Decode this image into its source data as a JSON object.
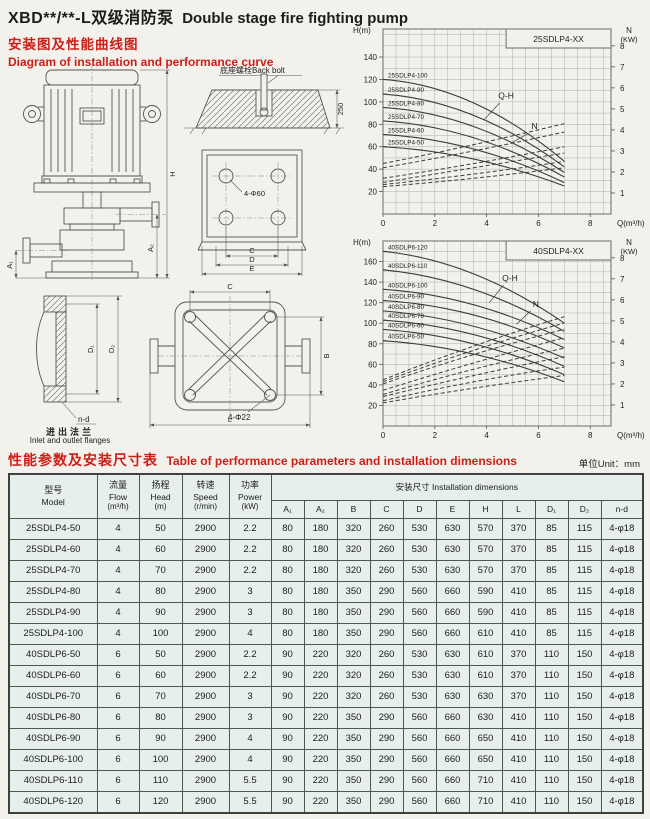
{
  "page": {
    "title_cn": "XBD**/**-L双级消防泵",
    "title_en": "Double stage fire fighting pump"
  },
  "section1": {
    "heading_cn": "安装图及性能曲线图",
    "heading_en": "Diagram of installation and performance curve"
  },
  "section2": {
    "heading_cn": "性能参数及安装尺寸表",
    "heading_en": "Table of performance parameters and installation dimensions",
    "unit_note": "单位Unit：mm"
  },
  "diagrams": {
    "pump": {
      "dim_h": "H",
      "dim_a2": "A₂",
      "dim_a1": "A₁"
    },
    "foundation": {
      "label": "底座螺栓Back bolt",
      "dim": "250"
    },
    "base_plate": {
      "holes": "4-Φ60",
      "dim_c": "C",
      "dim_d": "D",
      "dim_e": "E"
    },
    "flange": {
      "dim_d1": "D₁",
      "dim_d2": "D₂",
      "holes": "n-d",
      "caption_cn": "进出法兰",
      "caption_en": "Inlet and outlet flanges"
    },
    "base_top": {
      "holes": "4-Φ22",
      "dim_c": "C",
      "dim_b": "B",
      "dim_l": "L"
    }
  },
  "chart_data": [
    {
      "type": "line",
      "title": "25SDLP4-XX",
      "xlabel": "Q(m³/h)",
      "ylabel_left": "H(m)",
      "ylabel_right": "N (KW)",
      "xlim": [
        0,
        8.8
      ],
      "ylim_left": [
        0,
        165
      ],
      "ylim_right": [
        0,
        8.8
      ],
      "x_ticks": [
        0,
        2,
        4,
        6,
        8
      ],
      "h_ticks": [
        20,
        40,
        60,
        80,
        100,
        120,
        140
      ],
      "n_ticks": [
        1,
        2,
        3,
        4,
        5,
        6,
        7,
        8
      ],
      "grid": true,
      "grid_step_q": 0.5,
      "grid_step_h": 10,
      "qh_series": [
        {
          "name": "25SDLP4-100",
          "points": [
            [
              0,
              120
            ],
            [
              3.5,
              99
            ],
            [
              7,
              47
            ]
          ]
        },
        {
          "name": "25SDLP4-90",
          "points": [
            [
              0,
              107
            ],
            [
              3.5,
              88
            ],
            [
              7,
              42
            ]
          ]
        },
        {
          "name": "25SDLP4-80",
          "points": [
            [
              0,
              95
            ],
            [
              3.5,
              78
            ],
            [
              7,
              37
            ]
          ]
        },
        {
          "name": "25SDLP4-70",
          "points": [
            [
              0,
              83
            ],
            [
              3.5,
              68
            ],
            [
              7,
              33
            ]
          ]
        },
        {
          "name": "25SDLP4-60",
          "points": [
            [
              0,
              71
            ],
            [
              3.5,
              58
            ],
            [
              7,
              28
            ]
          ]
        },
        {
          "name": "25SDLP4-50",
          "points": [
            [
              0,
              60
            ],
            [
              3.5,
              49
            ],
            [
              7,
              25
            ]
          ]
        }
      ],
      "n_series": [
        {
          "name": "25SDLP4-100 N",
          "points": [
            [
              0,
              2.4
            ],
            [
              3.5,
              3.3
            ],
            [
              7,
              4.3
            ]
          ]
        },
        {
          "name": "25SDLP4-90 N",
          "points": [
            [
              0,
              2.2
            ],
            [
              3.5,
              3.0
            ],
            [
              7,
              3.9
            ]
          ]
        },
        {
          "name": "25SDLP4-80 N",
          "points": [
            [
              0,
              1.7
            ],
            [
              3.5,
              2.4
            ],
            [
              7,
              3.2
            ]
          ]
        },
        {
          "name": "25SDLP4-70 N",
          "points": [
            [
              0,
              1.5
            ],
            [
              3.5,
              2.2
            ],
            [
              7,
              2.9
            ]
          ]
        },
        {
          "name": "25SDLP4-60 N",
          "points": [
            [
              0,
              1.4
            ],
            [
              3.5,
              1.9
            ],
            [
              7,
              2.5
            ]
          ]
        },
        {
          "name": "25SDLP4-50 N",
          "points": [
            [
              0,
              1.3
            ],
            [
              3.5,
              1.7
            ],
            [
              7,
              2.2
            ]
          ]
        }
      ],
      "annotations": [
        {
          "label": "Q-H",
          "q": 4.75,
          "h": 103,
          "leader": [
            3.9,
            84,
            4.5,
            99
          ]
        },
        {
          "label": "N",
          "q": 5.85,
          "h": 76,
          "leader": [
            5.0,
            64,
            5.62,
            72
          ]
        }
      ]
    },
    {
      "type": "line",
      "title": "40SDLP4-XX",
      "xlabel": "Q(m³/h)",
      "ylabel_left": "H(m)",
      "ylabel_right": "N (KW)",
      "xlim": [
        0,
        8.8
      ],
      "ylim_left": [
        0,
        180
      ],
      "ylim_right": [
        0,
        8.8
      ],
      "x_ticks": [
        0,
        2,
        4,
        6,
        8
      ],
      "h_ticks": [
        20,
        40,
        60,
        80,
        100,
        120,
        140,
        160
      ],
      "n_ticks": [
        1,
        2,
        3,
        4,
        5,
        6,
        7,
        8
      ],
      "grid": true,
      "grid_step_q": 0.5,
      "grid_step_h": 10,
      "qh_series": [
        {
          "name": "40SDLP6-120",
          "points": [
            [
              0,
              170
            ],
            [
              3.5,
              148
            ],
            [
              7,
              100
            ]
          ]
        },
        {
          "name": "40SDLP6-110",
          "points": [
            [
              0,
              152
            ],
            [
              3.5,
              133
            ],
            [
              7,
              92
            ]
          ]
        },
        {
          "name": "40SDLP6-100",
          "points": [
            [
              0,
              133
            ],
            [
              3.5,
              118
            ],
            [
              7,
              84
            ]
          ]
        },
        {
          "name": "40SDLP6-90",
          "points": [
            [
              0,
              122
            ],
            [
              3.5,
              108
            ],
            [
              7,
              76
            ]
          ]
        },
        {
          "name": "40SDLP6-80",
          "points": [
            [
              0,
              112
            ],
            [
              3.5,
              97
            ],
            [
              7,
              66
            ]
          ]
        },
        {
          "name": "40SDLP6-70",
          "points": [
            [
              0,
              103
            ],
            [
              3.5,
              89
            ],
            [
              7,
              58
            ]
          ]
        },
        {
          "name": "40SDLP6-60",
          "points": [
            [
              0,
              94
            ],
            [
              3.5,
              80
            ],
            [
              7,
              50
            ]
          ]
        },
        {
          "name": "40SDLP6-50",
          "points": [
            [
              0,
              83
            ],
            [
              3.5,
              70
            ],
            [
              7,
              43
            ]
          ]
        }
      ],
      "n_series": [
        {
          "name": "40SDLP6-120 N",
          "points": [
            [
              0,
              2.2
            ],
            [
              3.5,
              3.8
            ],
            [
              7,
              5.2
            ]
          ]
        },
        {
          "name": "40SDLP6-110 N",
          "points": [
            [
              0,
              2.1
            ],
            [
              3.5,
              3.6
            ],
            [
              7,
              4.9
            ]
          ]
        },
        {
          "name": "40SDLP6-100 N",
          "points": [
            [
              0,
              2.0
            ],
            [
              3.5,
              3.4
            ],
            [
              7,
              4.6
            ]
          ]
        },
        {
          "name": "40SDLP6-90 N",
          "points": [
            [
              0,
              1.7
            ],
            [
              3.5,
              3.0
            ],
            [
              7,
              4.2
            ]
          ]
        },
        {
          "name": "40SDLP6-80 N",
          "points": [
            [
              0,
              1.5
            ],
            [
              3.5,
              2.7
            ],
            [
              7,
              3.7
            ]
          ]
        },
        {
          "name": "40SDLP6-70 N",
          "points": [
            [
              0,
              1.4
            ],
            [
              3.5,
              2.4
            ],
            [
              7,
              3.3
            ]
          ]
        },
        {
          "name": "40SDLP6-60 N",
          "points": [
            [
              0,
              1.2
            ],
            [
              3.5,
              2.1
            ],
            [
              7,
              2.8
            ]
          ]
        },
        {
          "name": "40SDLP6-50 N",
          "points": [
            [
              0,
              1.1
            ],
            [
              3.5,
              1.8
            ],
            [
              7,
              2.4
            ]
          ]
        }
      ],
      "annotations": [
        {
          "label": "Q-H",
          "q": 4.9,
          "h": 141,
          "leader": [
            4.1,
            120,
            4.65,
            137
          ]
        },
        {
          "label": "N",
          "q": 5.9,
          "h": 116,
          "leader": [
            5.15,
            99,
            5.7,
            112
          ]
        }
      ]
    }
  ],
  "table": {
    "headers": {
      "model_cn": "型号",
      "model_en": "Model",
      "flow_cn": "流量",
      "flow_en": "Flow",
      "flow_unit": "(m³/h)",
      "head_cn": "扬程",
      "head_en": "Head",
      "head_unit": "(m)",
      "speed_cn": "转速",
      "speed_en": "Speed",
      "speed_unit": "(r/min)",
      "power_cn": "功率",
      "power_en": "Power",
      "power_unit": "(kW)",
      "install": "安装尺寸 Installation dimensions",
      "dims": [
        "A₁",
        "A₂",
        "B",
        "C",
        "D",
        "E",
        "H",
        "L",
        "D₁",
        "D₂",
        "n-d"
      ]
    },
    "rows": [
      [
        "25SDLP4-50",
        "4",
        "50",
        "2900",
        "2.2",
        "80",
        "180",
        "320",
        "260",
        "530",
        "630",
        "570",
        "370",
        "85",
        "115",
        "4-φ18"
      ],
      [
        "25SDLP4-60",
        "4",
        "60",
        "2900",
        "2.2",
        "80",
        "180",
        "320",
        "260",
        "530",
        "630",
        "570",
        "370",
        "85",
        "115",
        "4-φ18"
      ],
      [
        "25SDLP4-70",
        "4",
        "70",
        "2900",
        "2.2",
        "80",
        "180",
        "320",
        "260",
        "530",
        "630",
        "570",
        "370",
        "85",
        "115",
        "4-φ18"
      ],
      [
        "25SDLP4-80",
        "4",
        "80",
        "2900",
        "3",
        "80",
        "180",
        "350",
        "290",
        "560",
        "660",
        "590",
        "410",
        "85",
        "115",
        "4-φ18"
      ],
      [
        "25SDLP4-90",
        "4",
        "90",
        "2900",
        "3",
        "80",
        "180",
        "350",
        "290",
        "560",
        "660",
        "590",
        "410",
        "85",
        "115",
        "4-φ18"
      ],
      [
        "25SDLP4-100",
        "4",
        "100",
        "2900",
        "4",
        "80",
        "180",
        "350",
        "290",
        "560",
        "660",
        "610",
        "410",
        "85",
        "115",
        "4-φ18"
      ],
      [
        "40SDLP6-50",
        "6",
        "50",
        "2900",
        "2.2",
        "90",
        "220",
        "320",
        "260",
        "530",
        "630",
        "610",
        "370",
        "110",
        "150",
        "4-φ18"
      ],
      [
        "40SDLP6-60",
        "6",
        "60",
        "2900",
        "2.2",
        "90",
        "220",
        "320",
        "260",
        "530",
        "630",
        "610",
        "370",
        "110",
        "150",
        "4-φ18"
      ],
      [
        "40SDLP6-70",
        "6",
        "70",
        "2900",
        "3",
        "90",
        "220",
        "320",
        "260",
        "530",
        "630",
        "630",
        "370",
        "110",
        "150",
        "4-φ18"
      ],
      [
        "40SDLP6-80",
        "6",
        "80",
        "2900",
        "3",
        "90",
        "220",
        "350",
        "290",
        "560",
        "660",
        "630",
        "410",
        "110",
        "150",
        "4-φ18"
      ],
      [
        "40SDLP6-90",
        "6",
        "90",
        "2900",
        "4",
        "90",
        "220",
        "350",
        "290",
        "560",
        "660",
        "650",
        "410",
        "110",
        "150",
        "4-φ18"
      ],
      [
        "40SDLP6-100",
        "6",
        "100",
        "2900",
        "4",
        "90",
        "220",
        "350",
        "290",
        "560",
        "660",
        "650",
        "410",
        "110",
        "150",
        "4-φ18"
      ],
      [
        "40SDLP6-110",
        "6",
        "110",
        "2900",
        "5.5",
        "90",
        "220",
        "350",
        "290",
        "560",
        "660",
        "710",
        "410",
        "110",
        "150",
        "4-φ18"
      ],
      [
        "40SDLP6-120",
        "6",
        "120",
        "2900",
        "5.5",
        "90",
        "220",
        "350",
        "290",
        "560",
        "660",
        "710",
        "410",
        "110",
        "150",
        "4-φ18"
      ]
    ]
  }
}
